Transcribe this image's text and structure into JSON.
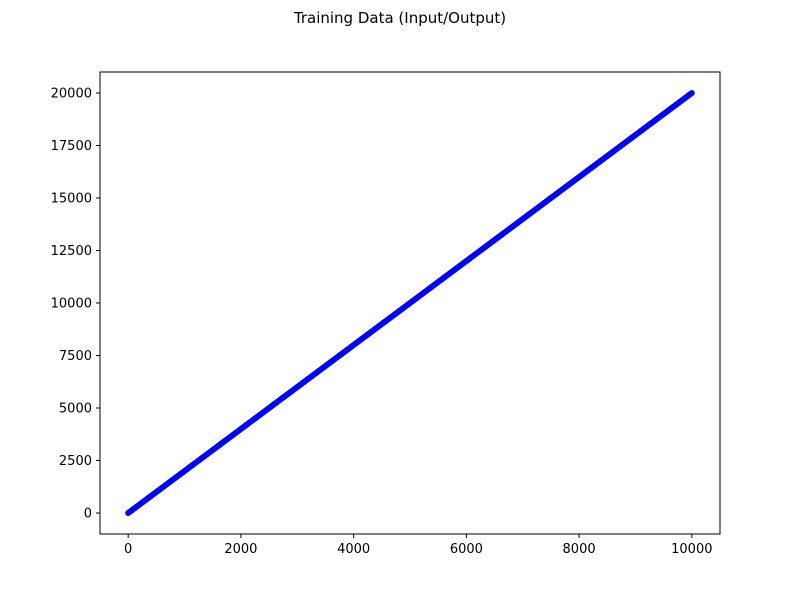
{
  "chart_data": {
    "type": "scatter",
    "title": "Training Data (Input/Output)",
    "xlabel": "",
    "ylabel": "",
    "xlim": [
      -500,
      10500
    ],
    "ylim": [
      -1000,
      21000
    ],
    "xticks": [
      0,
      2000,
      4000,
      6000,
      8000,
      10000
    ],
    "yticks": [
      0,
      2500,
      5000,
      7500,
      10000,
      12500,
      15000,
      17500,
      20000
    ],
    "grid": false,
    "series": [
      {
        "relation": "y = 2x",
        "x_range": [
          0,
          10000
        ],
        "color": "#0000ff",
        "x": [
          0,
          250,
          500,
          750,
          1000,
          1250,
          1500,
          1750,
          2000,
          2250,
          2500,
          2750,
          3000,
          3250,
          3500,
          3750,
          4000,
          4250,
          4500,
          4750,
          5000,
          5250,
          5500,
          5750,
          6000,
          6250,
          6500,
          6750,
          7000,
          7250,
          7500,
          7750,
          8000,
          8250,
          8500,
          8750,
          9000,
          9250,
          9500,
          9750,
          10000
        ],
        "y": [
          0,
          500,
          1000,
          1500,
          2000,
          2500,
          3000,
          3500,
          4000,
          4500,
          5000,
          5500,
          6000,
          6500,
          7000,
          7500,
          8000,
          8500,
          9000,
          9500,
          10000,
          10500,
          11000,
          11500,
          12000,
          12500,
          13000,
          13500,
          14000,
          14500,
          15000,
          15500,
          16000,
          16500,
          17000,
          17500,
          18000,
          18500,
          19000,
          19500,
          20000
        ]
      }
    ]
  }
}
